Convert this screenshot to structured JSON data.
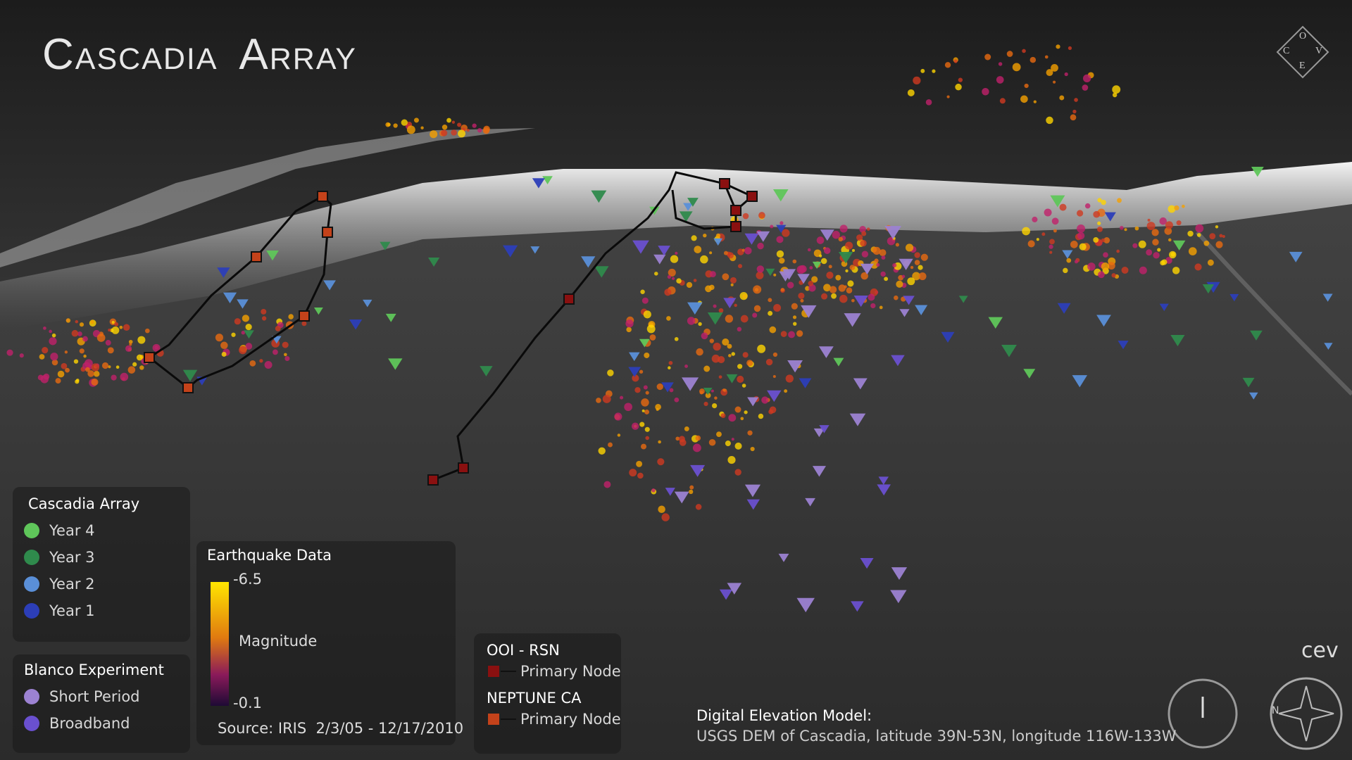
{
  "title": "Cascadia Array",
  "logo": {
    "letters": [
      "O",
      "C",
      "V",
      "E"
    ]
  },
  "cascadia_legend": {
    "title": "Cascadia Array",
    "items": [
      {
        "label": "Year 4",
        "color": "#5fc65a"
      },
      {
        "label": "Year 3",
        "color": "#2f8a4c"
      },
      {
        "label": "Year 2",
        "color": "#5a8fd8"
      },
      {
        "label": "Year 1",
        "color": "#2c3eb8"
      }
    ]
  },
  "blanco_legend": {
    "title": "Blanco Experiment",
    "items": [
      {
        "label": "Short Period",
        "color": "#9c82d2"
      },
      {
        "label": "Broadband",
        "color": "#6a50d0"
      }
    ]
  },
  "earthquake_legend": {
    "title": "Earthquake Data",
    "top_label": "-6.5",
    "middle_label": "Magnitude",
    "bottom_label": "-0.1",
    "source": "Source: IRIS  2/3/05 - 12/17/2010"
  },
  "cable_legend": {
    "groups": [
      {
        "title": "OOI - RSN",
        "item": "Primary Node",
        "color": "#8a1010"
      },
      {
        "title": "NEPTUNE CA",
        "item": "Primary Node",
        "color": "#c4421a"
      }
    ]
  },
  "dem_note": {
    "title": "Digital Elevation Model:",
    "text": "USGS DEM of Cascadia, latitude 39N-53N, longitude 116W-133W"
  },
  "watermark": "cev",
  "compass_letter": "N"
}
